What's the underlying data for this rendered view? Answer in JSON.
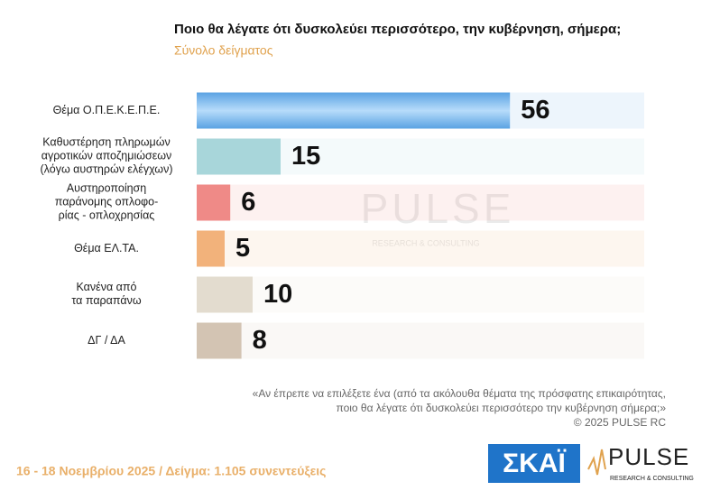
{
  "chart_data": {
    "type": "bar",
    "orientation": "horizontal",
    "title": "Ποιο θα λέγατε ότι δυσκολεύει περισσότερο, την κυβέρνηση, σήμερα;",
    "subtitle": "Σύνολο δείγματος",
    "categories": [
      "Θέμα Ο.Π.Ε.Κ.Ε.Π.Ε.",
      "Καθυστέρηση πληρωμών\nαγροτικών αποζημιώσεων\n(λόγω αυστηρών ελέγχων)",
      "Αυστηροποίηση\nπαράνομης οπλοφο-\nρίας - οπλοχρησίας",
      "Θέμα ΕΛ.ΤΑ.",
      "Κανένα από\nτα παραπάνω",
      "ΔΓ / ΔΑ"
    ],
    "values": [
      56,
      15,
      6,
      5,
      10,
      8
    ],
    "colors": [
      "#6aaee8",
      "#a8d6da",
      "#ef8a87",
      "#f2b27b",
      "#e3dccf",
      "#d3c4b3"
    ],
    "xlim": [
      0,
      80
    ],
    "footnote": [
      "«Αν έπρεπε να επιλέξετε ένα (από τα ακόλουθα θέματα της πρόσφατης επικαιρότητας,",
      "ποιο θα λέγατε ότι δυσκολεύει περισσότερο την κυβέρνηση σήμερα;»",
      "© 2025 PULSE RC"
    ],
    "footer": "16 - 18 Νοεμβρίου 2025  /  Δείγμα:  1.105 συνεντεύξεις"
  },
  "logos": {
    "skai": "ΣΚΑΪ",
    "pulse": "PULSE",
    "pulse_sub": "RESEARCH & CONSULTING"
  },
  "watermark": {
    "title": "PULSE",
    "subtitle": "RESEARCH & CONSULTING"
  }
}
